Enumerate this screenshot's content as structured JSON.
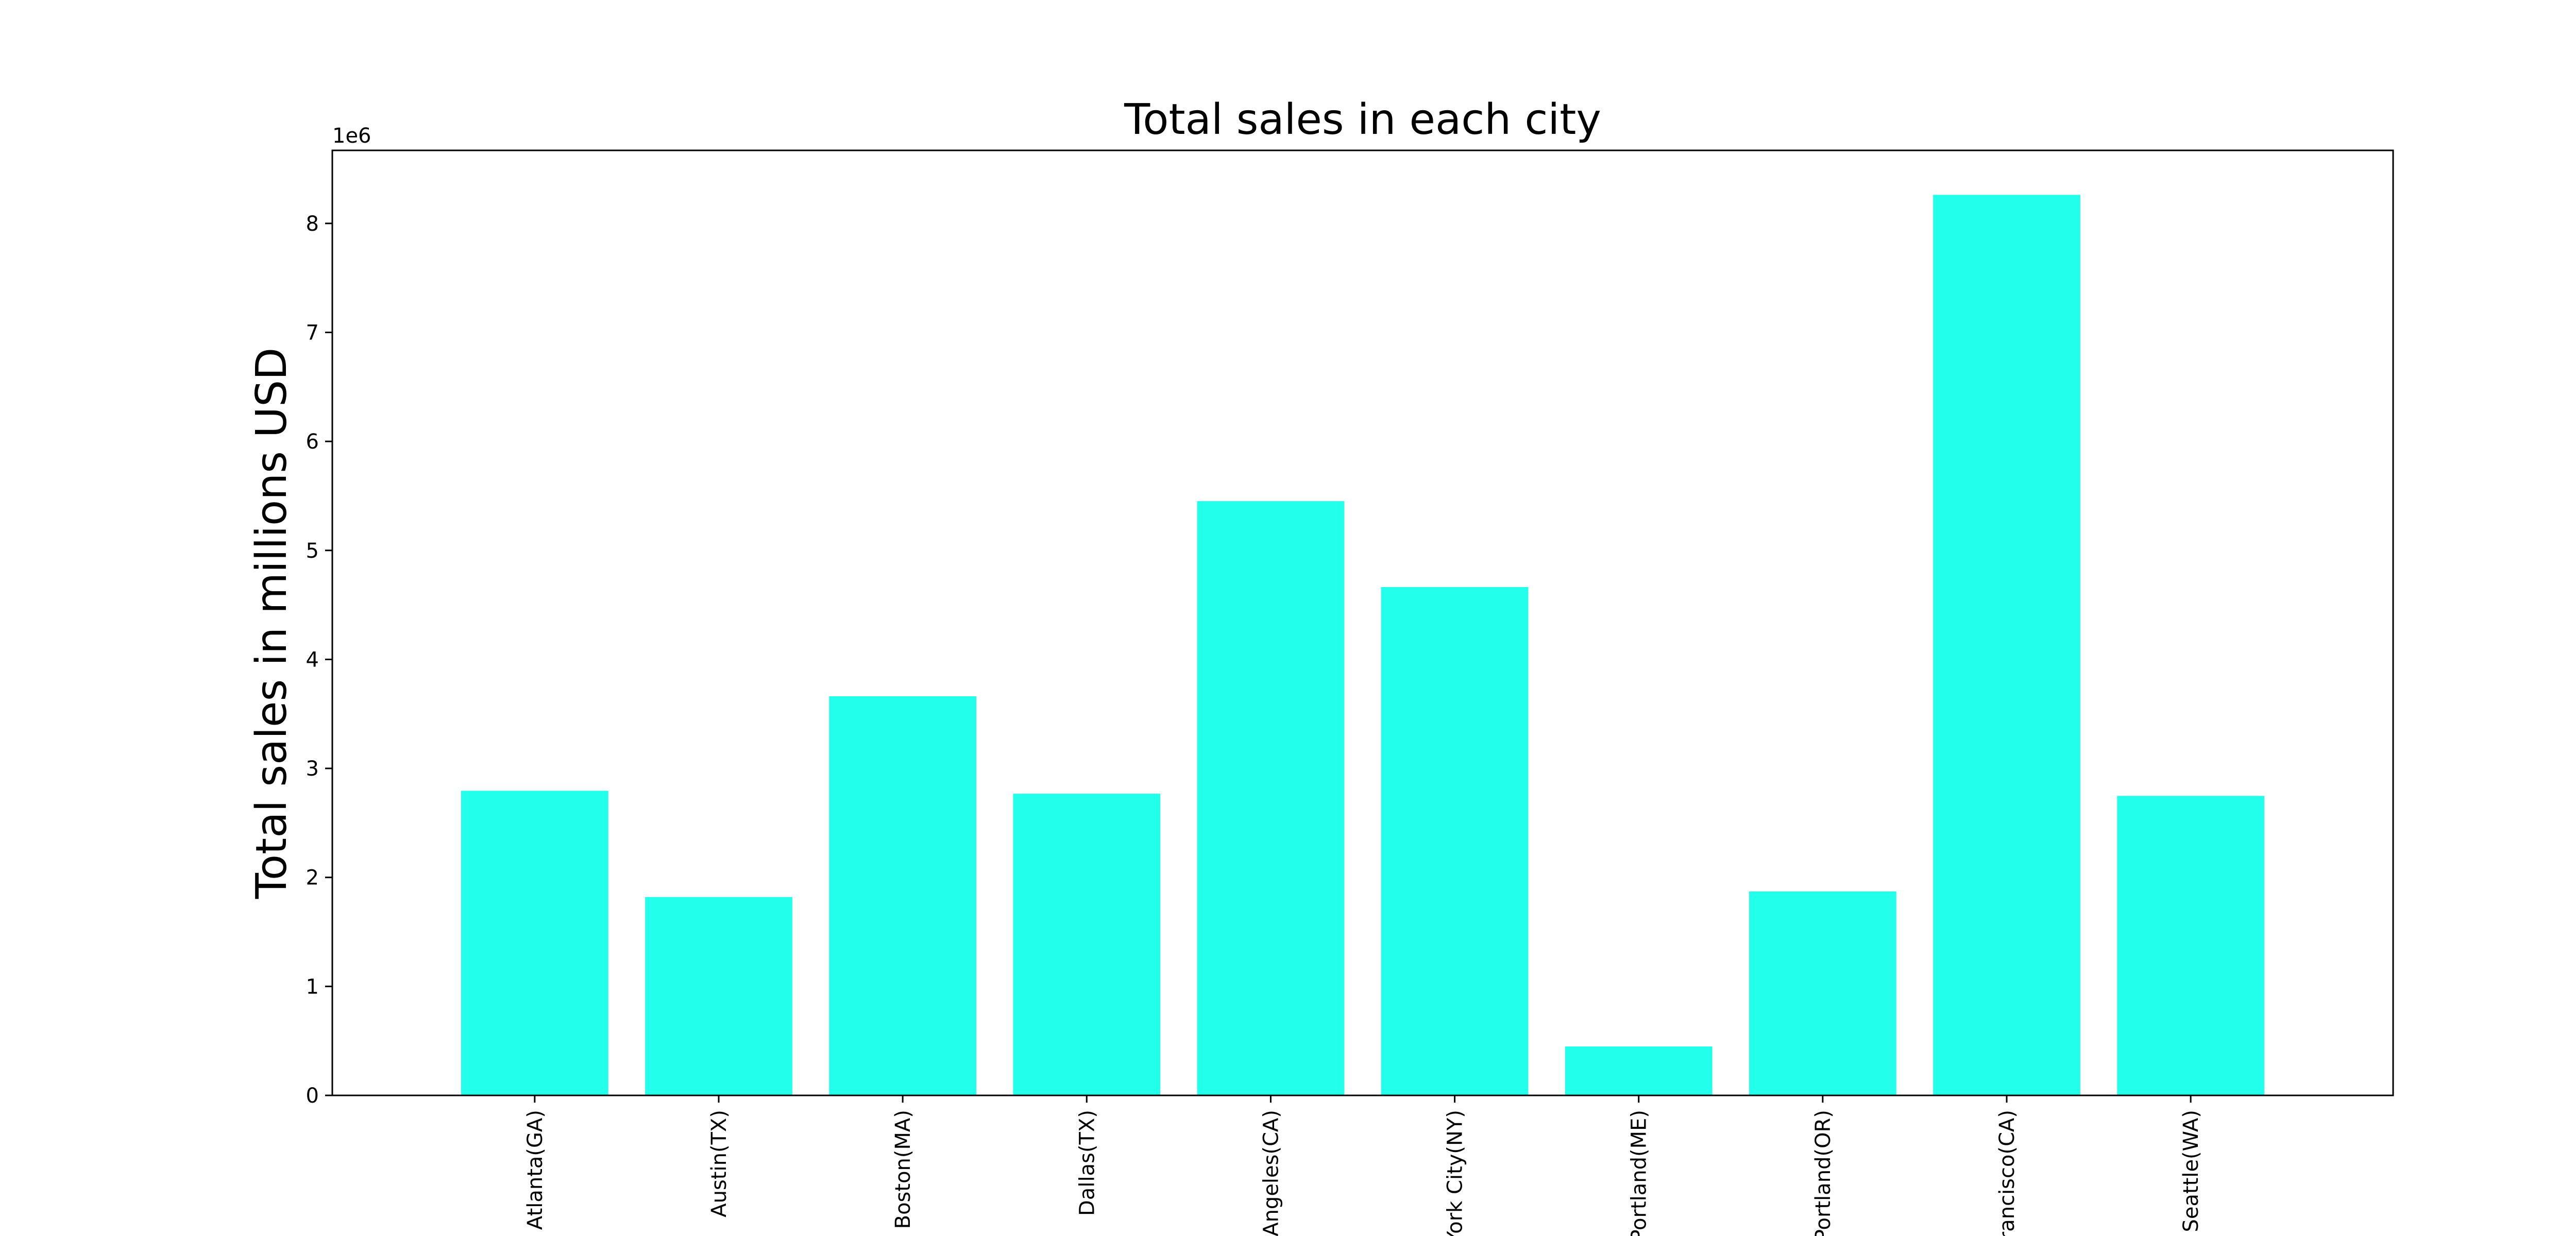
{
  "chart_data": {
    "type": "bar",
    "title": "Total sales in each city",
    "xlabel": "",
    "ylabel": "Total sales in millions USD",
    "y_offset_label": "1e6",
    "categories": [
      "Atlanta(GA)",
      "Austin(TX)",
      "Boston(MA)",
      "Dallas(TX)",
      "Angeles(CA)",
      "York City(NY)",
      "Portland(ME)",
      "Portland(OR)",
      "Francisco(CA)",
      "Seattle(WA)"
    ],
    "values": [
      2795000,
      1820000,
      3662000,
      2768000,
      5452000,
      4664000,
      449000,
      1871000,
      8262000,
      2748000
    ],
    "ylim": [
      0,
      8670000
    ],
    "yticks": [
      0,
      1,
      2,
      3,
      4,
      5,
      6,
      7,
      8
    ],
    "y_tick_unit": 1000000,
    "bar_color": "#22ffea",
    "grid": false,
    "legend": "none",
    "x_tick_rotation": "vertical"
  }
}
